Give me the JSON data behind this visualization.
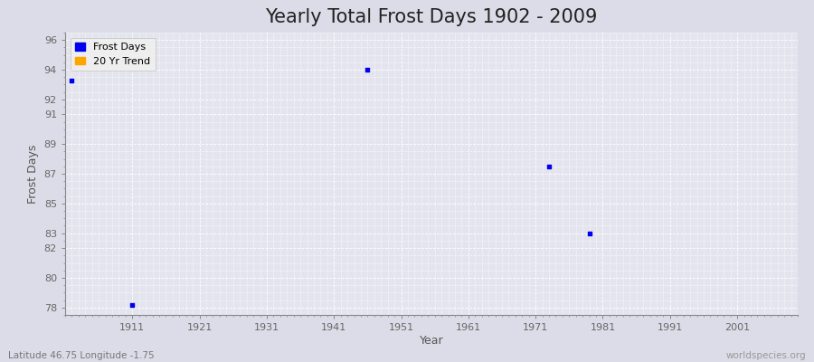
{
  "title": "Yearly Total Frost Days 1902 - 2009",
  "xlabel": "Year",
  "ylabel": "Frost Days",
  "subtitle_left": "Latitude 46.75 Longitude -1.75",
  "subtitle_right": "worldspecies.org",
  "data_points": [
    [
      1902,
      93.3
    ],
    [
      1911,
      78.2
    ],
    [
      1946,
      94.0
    ],
    [
      1973,
      87.5
    ],
    [
      1979,
      83.0
    ]
  ],
  "point_color": "#0000EE",
  "trend_color": "#FFA500",
  "xlim": [
    1901,
    2010
  ],
  "ylim": [
    77.5,
    96.5
  ],
  "yticks": [
    78,
    80,
    82,
    83,
    85,
    87,
    89,
    91,
    92,
    94,
    96
  ],
  "xticks": [
    1911,
    1921,
    1931,
    1941,
    1951,
    1961,
    1971,
    1981,
    1991,
    2001
  ],
  "fig_bg_color": "#DCDCE8",
  "plot_bg_color": "#E4E4EE",
  "grid_color": "#FFFFFF",
  "legend_labels": [
    "Frost Days",
    "20 Yr Trend"
  ],
  "legend_colors": [
    "#0000EE",
    "#FFA500"
  ],
  "title_fontsize": 15,
  "axis_fontsize": 9,
  "tick_fontsize": 8,
  "tick_color": "#666666",
  "label_color": "#555555"
}
